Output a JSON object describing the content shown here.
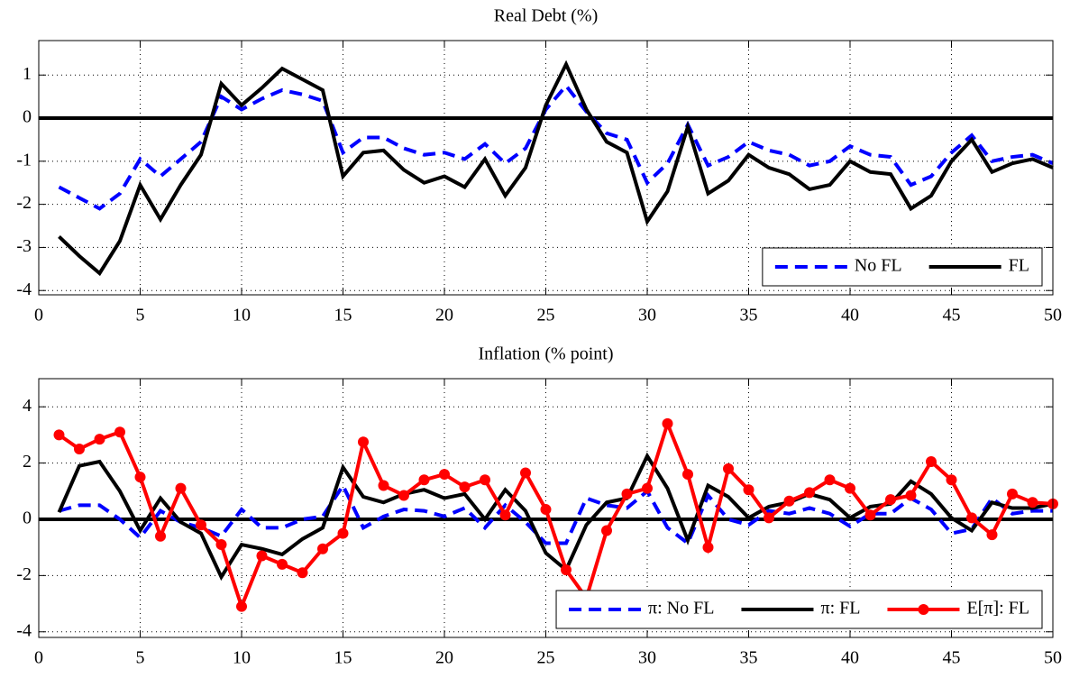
{
  "chart_data": [
    {
      "type": "line",
      "title": "Real Debt (%)",
      "x": [
        1,
        2,
        3,
        4,
        5,
        6,
        7,
        8,
        9,
        10,
        11,
        12,
        13,
        14,
        15,
        16,
        17,
        18,
        19,
        20,
        21,
        22,
        23,
        24,
        25,
        26,
        27,
        28,
        29,
        30,
        31,
        32,
        33,
        34,
        35,
        36,
        37,
        38,
        39,
        40,
        41,
        42,
        43,
        44,
        45,
        46,
        47,
        48,
        49,
        50
      ],
      "series": [
        {
          "name": "No FL",
          "color": "#0000ff",
          "style": "dashed",
          "values": [
            -1.6,
            -1.85,
            -2.1,
            -1.75,
            -0.95,
            -1.35,
            -0.95,
            -0.55,
            0.5,
            0.2,
            0.45,
            0.65,
            0.55,
            0.4,
            -0.8,
            -0.45,
            -0.45,
            -0.7,
            -0.85,
            -0.8,
            -0.95,
            -0.6,
            -1.05,
            -0.7,
            0.2,
            0.75,
            0.15,
            -0.35,
            -0.5,
            -1.5,
            -1.05,
            -0.15,
            -1.1,
            -0.9,
            -0.55,
            -0.75,
            -0.85,
            -1.1,
            -1.0,
            -0.65,
            -0.85,
            -0.9,
            -1.55,
            -1.35,
            -0.8,
            -0.4,
            -1.0,
            -0.9,
            -0.85,
            -1.05
          ]
        },
        {
          "name": "FL",
          "color": "#000000",
          "style": "solid",
          "values": [
            -2.75,
            -3.2,
            -3.6,
            -2.85,
            -1.55,
            -2.35,
            -1.55,
            -0.85,
            0.8,
            0.3,
            0.7,
            1.15,
            0.9,
            0.65,
            -1.35,
            -0.8,
            -0.75,
            -1.2,
            -1.5,
            -1.35,
            -1.6,
            -0.95,
            -1.8,
            -1.15,
            0.3,
            1.25,
            0.2,
            -0.55,
            -0.8,
            -2.4,
            -1.7,
            -0.2,
            -1.75,
            -1.45,
            -0.85,
            -1.15,
            -1.3,
            -1.65,
            -1.55,
            -1.0,
            -1.25,
            -1.3,
            -2.1,
            -1.8,
            -1.0,
            -0.5,
            -1.25,
            -1.05,
            -0.95,
            -1.15
          ]
        }
      ],
      "xlim": [
        0,
        50
      ],
      "xticks": [
        0,
        5,
        10,
        15,
        20,
        25,
        30,
        35,
        40,
        45,
        50
      ],
      "ylim": [
        -4.1,
        1.8
      ],
      "yticks": [
        -4,
        -3,
        -2,
        -1,
        0,
        1
      ],
      "grid": true,
      "legend": "lower right",
      "hline": 0
    },
    {
      "type": "line",
      "title": "Inflation (% point)",
      "x": [
        1,
        2,
        3,
        4,
        5,
        6,
        7,
        8,
        9,
        10,
        11,
        12,
        13,
        14,
        15,
        16,
        17,
        18,
        19,
        20,
        21,
        22,
        23,
        24,
        25,
        26,
        27,
        28,
        29,
        30,
        31,
        32,
        33,
        34,
        35,
        36,
        37,
        38,
        39,
        40,
        41,
        42,
        43,
        44,
        45,
        46,
        47,
        48,
        49,
        50
      ],
      "series": [
        {
          "name": "π: No FL",
          "color": "#0000ff",
          "style": "dashed",
          "values": [
            0.3,
            0.5,
            0.5,
            0.0,
            -0.65,
            0.3,
            -0.1,
            -0.3,
            -0.6,
            0.35,
            -0.3,
            -0.3,
            0.0,
            0.1,
            1.2,
            -0.3,
            0.1,
            0.35,
            0.3,
            0.1,
            0.4,
            -0.3,
            0.5,
            -0.1,
            -0.85,
            -0.85,
            0.75,
            0.5,
            0.4,
            1.0,
            -0.3,
            -0.85,
            0.85,
            0.0,
            -0.2,
            0.3,
            0.2,
            0.4,
            0.2,
            -0.25,
            0.2,
            0.2,
            0.75,
            0.35,
            -0.5,
            -0.35,
            0.75,
            0.2,
            0.3,
            0.3
          ]
        },
        {
          "name": "π: FL",
          "color": "#000000",
          "style": "solid",
          "values": [
            0.25,
            1.9,
            2.05,
            1.0,
            -0.4,
            0.75,
            -0.1,
            -0.5,
            -2.05,
            -0.9,
            -1.05,
            -1.25,
            -0.7,
            -0.3,
            1.85,
            0.8,
            0.6,
            0.9,
            1.05,
            0.75,
            0.9,
            0.0,
            1.05,
            0.3,
            -1.2,
            -1.8,
            -0.2,
            0.6,
            0.75,
            2.25,
            1.1,
            -0.75,
            1.2,
            0.8,
            0.05,
            0.45,
            0.6,
            0.9,
            0.7,
            0.05,
            0.45,
            0.55,
            1.35,
            0.9,
            0.05,
            -0.4,
            0.6,
            0.4,
            0.4,
            0.55
          ]
        },
        {
          "name": "E[π]: FL",
          "color": "#ff0000",
          "style": "solid",
          "marker": "o",
          "values": [
            3.0,
            2.5,
            2.85,
            3.1,
            1.5,
            -0.6,
            1.1,
            -0.2,
            -0.9,
            -3.1,
            -1.3,
            -1.6,
            -1.9,
            -1.05,
            -0.5,
            2.75,
            1.2,
            0.85,
            1.4,
            1.6,
            1.15,
            1.4,
            0.15,
            1.65,
            0.35,
            -1.8,
            -2.8,
            -0.4,
            0.9,
            1.1,
            3.4,
            1.6,
            -1.0,
            1.8,
            1.05,
            0.05,
            0.65,
            0.95,
            1.4,
            1.1,
            0.15,
            0.7,
            0.85,
            2.05,
            1.4,
            0.05,
            -0.55,
            0.9,
            0.6,
            0.55
          ]
        }
      ],
      "xlim": [
        0,
        50
      ],
      "xticks": [
        0,
        5,
        10,
        15,
        20,
        25,
        30,
        35,
        40,
        45,
        50
      ],
      "ylim": [
        -4.2,
        5
      ],
      "yticks": [
        -4,
        -2,
        0,
        2,
        4
      ],
      "grid": true,
      "legend": "lower right",
      "hline": 0
    }
  ]
}
